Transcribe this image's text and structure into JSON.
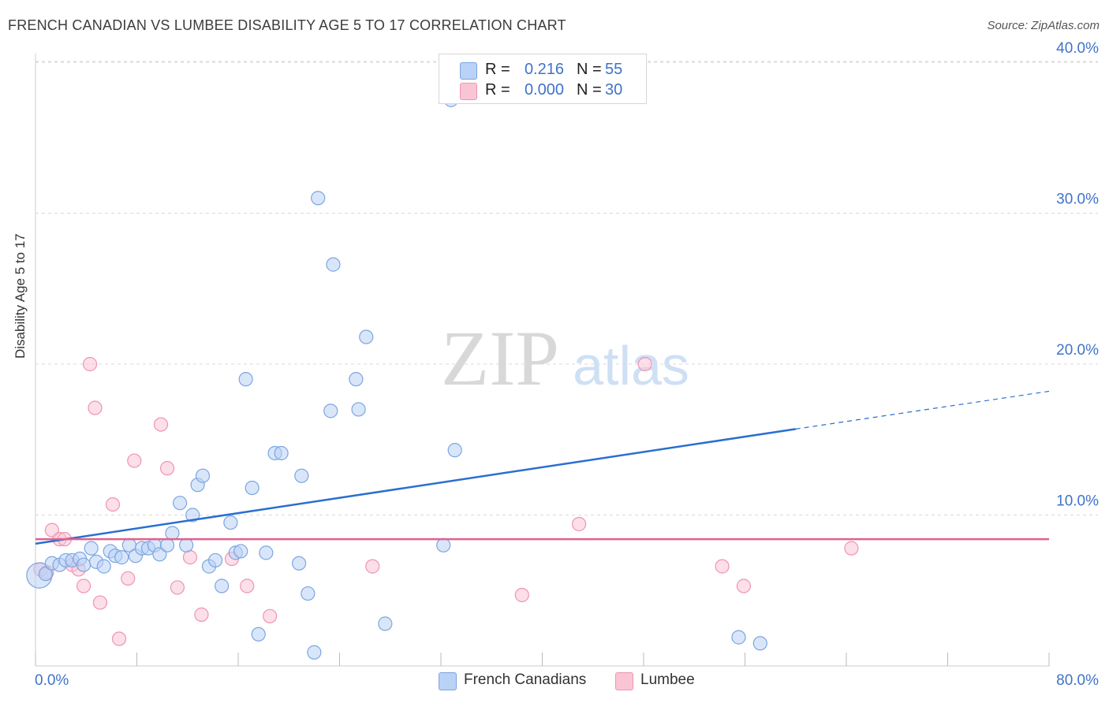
{
  "header": {
    "title": "FRENCH CANADIAN VS LUMBEE DISABILITY AGE 5 TO 17 CORRELATION CHART",
    "source": "Source: ZipAtlas.com"
  },
  "watermark": {
    "zip": "ZIP",
    "atlas": "atlas"
  },
  "legend": {
    "series1": {
      "r_label": "R =",
      "r_value": "0.216",
      "n_label": "N =",
      "n_value": "55"
    },
    "series2": {
      "r_label": "R =",
      "r_value": "0.000",
      "n_label": "N =",
      "n_value": "30"
    }
  },
  "colors": {
    "blue_fill": "#b9d2f5",
    "blue_stroke": "#7ba6e0",
    "blue_line": "#2a6fd0",
    "pink_fill": "#f9c5d5",
    "pink_stroke": "#ef94b2",
    "pink_line": "#e0608e",
    "tick_text": "#3f73c9",
    "grid": "#d9d9d9"
  },
  "chart_data": {
    "type": "scatter",
    "title": "FRENCH CANADIAN VS LUMBEE DISABILITY AGE 5 TO 17 CORRELATION CHART",
    "xlabel": "",
    "ylabel": "Disability Age 5 to 17",
    "xlim": [
      0,
      80
    ],
    "ylim": [
      0,
      41
    ],
    "x_tick_labels": [
      "0.0%",
      "80.0%"
    ],
    "y_ticks": [
      10,
      20,
      30,
      40
    ],
    "y_tick_labels": [
      "10.0%",
      "20.0%",
      "30.0%",
      "40.0%"
    ],
    "grid": "horizontal dashed",
    "legend_position": "bottom",
    "series": [
      {
        "name": "French Canadians",
        "color": "#b9d2f5",
        "r": 0.216,
        "n": 55,
        "trend": {
          "x": [
            0,
            60
          ],
          "y": [
            8.1,
            15.7
          ],
          "dashed_extension": {
            "x": [
              60,
              80
            ],
            "y": [
              15.7,
              18.2
            ]
          }
        },
        "points": [
          {
            "x": 0.3,
            "y": 6.0,
            "big": true
          },
          {
            "x": 0.8,
            "y": 6.1
          },
          {
            "x": 1.3,
            "y": 6.8
          },
          {
            "x": 1.9,
            "y": 6.7
          },
          {
            "x": 2.4,
            "y": 7.0
          },
          {
            "x": 2.9,
            "y": 7.0
          },
          {
            "x": 3.5,
            "y": 7.1
          },
          {
            "x": 3.8,
            "y": 6.7
          },
          {
            "x": 4.4,
            "y": 7.8
          },
          {
            "x": 4.8,
            "y": 6.9
          },
          {
            "x": 5.4,
            "y": 6.6
          },
          {
            "x": 5.9,
            "y": 7.6
          },
          {
            "x": 6.3,
            "y": 7.3
          },
          {
            "x": 6.8,
            "y": 7.2
          },
          {
            "x": 7.4,
            "y": 8.0
          },
          {
            "x": 7.9,
            "y": 7.3
          },
          {
            "x": 8.4,
            "y": 7.8
          },
          {
            "x": 8.9,
            "y": 7.8
          },
          {
            "x": 9.4,
            "y": 8.0
          },
          {
            "x": 9.8,
            "y": 7.4
          },
          {
            "x": 10.4,
            "y": 8.0
          },
          {
            "x": 10.8,
            "y": 8.8
          },
          {
            "x": 11.4,
            "y": 10.8
          },
          {
            "x": 11.9,
            "y": 8.0
          },
          {
            "x": 12.4,
            "y": 10.0
          },
          {
            "x": 12.8,
            "y": 12.0
          },
          {
            "x": 13.2,
            "y": 12.6
          },
          {
            "x": 13.7,
            "y": 6.6
          },
          {
            "x": 14.2,
            "y": 7.0
          },
          {
            "x": 14.7,
            "y": 5.3
          },
          {
            "x": 15.4,
            "y": 9.5
          },
          {
            "x": 15.8,
            "y": 7.5
          },
          {
            "x": 16.2,
            "y": 7.6
          },
          {
            "x": 16.6,
            "y": 19.0
          },
          {
            "x": 17.1,
            "y": 11.8
          },
          {
            "x": 17.6,
            "y": 2.1
          },
          {
            "x": 18.2,
            "y": 7.5
          },
          {
            "x": 18.9,
            "y": 14.1
          },
          {
            "x": 19.4,
            "y": 14.1
          },
          {
            "x": 20.8,
            "y": 6.8
          },
          {
            "x": 21.0,
            "y": 12.6
          },
          {
            "x": 21.5,
            "y": 4.8
          },
          {
            "x": 22.0,
            "y": 0.9
          },
          {
            "x": 22.3,
            "y": 31.0
          },
          {
            "x": 23.3,
            "y": 16.9
          },
          {
            "x": 23.5,
            "y": 26.6
          },
          {
            "x": 25.3,
            "y": 19.0
          },
          {
            "x": 25.5,
            "y": 17.0
          },
          {
            "x": 26.1,
            "y": 21.8
          },
          {
            "x": 27.6,
            "y": 2.8
          },
          {
            "x": 32.2,
            "y": 8.0
          },
          {
            "x": 32.8,
            "y": 37.5
          },
          {
            "x": 33.1,
            "y": 14.3
          },
          {
            "x": 55.5,
            "y": 1.9
          },
          {
            "x": 57.2,
            "y": 1.5
          }
        ]
      },
      {
        "name": "Lumbee",
        "color": "#f9c5d5",
        "r": 0.0,
        "n": 30,
        "trend": {
          "x": [
            0,
            80
          ],
          "y": [
            8.4,
            8.4
          ]
        },
        "points": [
          {
            "x": 0.4,
            "y": 6.4
          },
          {
            "x": 0.9,
            "y": 6.2
          },
          {
            "x": 1.3,
            "y": 9.0
          },
          {
            "x": 1.9,
            "y": 8.4
          },
          {
            "x": 2.3,
            "y": 8.4
          },
          {
            "x": 2.9,
            "y": 6.7
          },
          {
            "x": 3.4,
            "y": 6.4
          },
          {
            "x": 3.8,
            "y": 5.3
          },
          {
            "x": 4.3,
            "y": 20.0
          },
          {
            "x": 4.7,
            "y": 17.1
          },
          {
            "x": 5.1,
            "y": 4.2
          },
          {
            "x": 6.1,
            "y": 10.7
          },
          {
            "x": 6.6,
            "y": 1.8
          },
          {
            "x": 7.3,
            "y": 5.8
          },
          {
            "x": 7.8,
            "y": 13.6
          },
          {
            "x": 9.9,
            "y": 16.0
          },
          {
            "x": 10.4,
            "y": 13.1
          },
          {
            "x": 11.2,
            "y": 5.2
          },
          {
            "x": 12.2,
            "y": 7.2
          },
          {
            "x": 13.1,
            "y": 3.4
          },
          {
            "x": 15.5,
            "y": 7.1
          },
          {
            "x": 16.7,
            "y": 5.3
          },
          {
            "x": 18.5,
            "y": 3.3
          },
          {
            "x": 26.6,
            "y": 6.6
          },
          {
            "x": 38.4,
            "y": 4.7
          },
          {
            "x": 42.9,
            "y": 9.4
          },
          {
            "x": 48.1,
            "y": 20.0
          },
          {
            "x": 54.2,
            "y": 6.6
          },
          {
            "x": 55.9,
            "y": 5.3
          },
          {
            "x": 64.4,
            "y": 7.8
          }
        ]
      }
    ]
  }
}
